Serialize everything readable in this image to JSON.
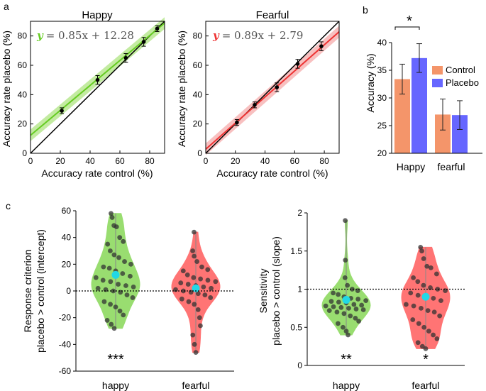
{
  "panel_labels": [
    "a",
    "b",
    "c"
  ],
  "colors": {
    "happy_green": "#66cc22",
    "happy_band": "#b8e890",
    "fearful_red": "#ee3333",
    "fearful_band": "#f7b5b5",
    "control_orange": "#f4956a",
    "placebo_blue": "#6666ff",
    "violin_green": "#88d858",
    "violin_red": "#ff5c5c",
    "median_cyan": "#22d8e6"
  },
  "chart_data": [
    {
      "id": "happy_scatter",
      "type": "scatter",
      "title": "Happy",
      "xlabel": "Accuracy rate control (%)",
      "ylabel": "Accuracy rate placebo (%)",
      "xlim": [
        0,
        90
      ],
      "ylim": [
        0,
        90
      ],
      "xticks": [
        "0",
        "20",
        "40",
        "60",
        "80"
      ],
      "yticks": [
        "0",
        "20",
        "40",
        "60",
        "80"
      ],
      "points": [
        {
          "x": 21,
          "y": 29,
          "err": 2
        },
        {
          "x": 45,
          "y": 50,
          "err": 3
        },
        {
          "x": 64,
          "y": 65,
          "err": 3
        },
        {
          "x": 76,
          "y": 76,
          "err": 3
        },
        {
          "x": 85,
          "y": 85,
          "err": 2
        }
      ],
      "fit": {
        "slope": 0.85,
        "intercept": 12.28
      },
      "equation_var": "y",
      "equation_rest": "= 0.85x + 12.28",
      "identity_line": true
    },
    {
      "id": "fearful_scatter",
      "type": "scatter",
      "title": "Fearful",
      "xlabel": "Accuracy rate control (%)",
      "ylabel": "Accuracy rate placebo (%)",
      "xlim": [
        0,
        90
      ],
      "ylim": [
        0,
        90
      ],
      "xticks": [
        "0",
        "20",
        "40",
        "60",
        "80"
      ],
      "yticks": [
        "0",
        "20",
        "40",
        "60",
        "80"
      ],
      "points": [
        {
          "x": 21,
          "y": 21,
          "err": 2
        },
        {
          "x": 33,
          "y": 33,
          "err": 2
        },
        {
          "x": 48,
          "y": 45,
          "err": 3
        },
        {
          "x": 62,
          "y": 61,
          "err": 3
        },
        {
          "x": 78,
          "y": 73,
          "err": 3
        }
      ],
      "fit": {
        "slope": 0.89,
        "intercept": 2.79
      },
      "equation_var": "y",
      "equation_rest": "= 0.89x + 2.79",
      "identity_line": true
    },
    {
      "id": "accuracy_bar",
      "type": "bar",
      "categories": [
        "Happy",
        "fearful"
      ],
      "series": [
        {
          "name": "Control",
          "values": [
            33.4,
            27.0
          ],
          "err": [
            2.7,
            2.8
          ]
        },
        {
          "name": "Placebo",
          "values": [
            37.2,
            26.9
          ],
          "err": [
            2.6,
            2.6
          ]
        }
      ],
      "ylabel": "Accuracy (%)",
      "ylim": [
        20,
        40
      ],
      "yticks": [
        "20",
        "25",
        "30",
        "35",
        "40"
      ],
      "significance": "*",
      "legend_position": "right"
    },
    {
      "id": "criterion_violin",
      "type": "violin",
      "categories": [
        "happy",
        "fearful"
      ],
      "ylabel_line1": "Response criterion",
      "ylabel_line2": "placebo > control (intercept)",
      "ylim": [
        -60,
        60
      ],
      "yticks": [
        "-60",
        "-40",
        "-20",
        "0",
        "20",
        "40",
        "60"
      ],
      "reference_line": 0,
      "medians": [
        12,
        2
      ],
      "significance": [
        "***",
        ""
      ],
      "points": [
        [
          58,
          55,
          49,
          48,
          40,
          37,
          35,
          30,
          27,
          25,
          22,
          20,
          18,
          17,
          15,
          13,
          11,
          10,
          8,
          7,
          5,
          4,
          3,
          2,
          1,
          0,
          -1,
          -3,
          -5,
          -8,
          -10,
          -12,
          -15,
          -18,
          -22,
          -25,
          -28
        ],
        [
          44,
          30,
          26,
          22,
          18,
          16,
          15,
          12,
          10,
          9,
          8,
          7,
          6,
          5,
          4,
          3,
          2,
          1,
          0,
          -1,
          -2,
          -3,
          -5,
          -6,
          -8,
          -10,
          -14,
          -20,
          -26,
          -33,
          -40,
          -46
        ]
      ]
    },
    {
      "id": "sensitivity_violin",
      "type": "violin",
      "categories": [
        "happy",
        "fearful"
      ],
      "ylabel_line1": "Sensitivity",
      "ylabel_line2": "placebo > control (slope)",
      "ylim": [
        0,
        2
      ],
      "yticks": [
        "0",
        "0.5",
        "1",
        "1.5",
        "2"
      ],
      "reference_line": 1,
      "medians": [
        0.86,
        0.9
      ],
      "significance": [
        "**",
        "*"
      ],
      "points": [
        [
          1.9,
          1.38,
          1.15,
          1.05,
          1.0,
          0.98,
          0.95,
          0.93,
          0.9,
          0.88,
          0.87,
          0.85,
          0.84,
          0.83,
          0.82,
          0.8,
          0.79,
          0.78,
          0.77,
          0.76,
          0.75,
          0.74,
          0.73,
          0.72,
          0.7,
          0.68,
          0.65,
          0.62,
          0.58,
          0.55,
          0.5,
          0.45,
          0.4
        ],
        [
          1.55,
          1.5,
          1.4,
          1.3,
          1.28,
          1.2,
          1.15,
          1.1,
          1.05,
          1.02,
          1.0,
          0.98,
          0.95,
          0.92,
          0.9,
          0.88,
          0.85,
          0.8,
          0.78,
          0.75,
          0.72,
          0.7,
          0.65,
          0.6,
          0.55,
          0.5,
          0.45,
          0.4,
          0.35,
          0.3,
          0.25,
          0.22
        ]
      ]
    }
  ]
}
